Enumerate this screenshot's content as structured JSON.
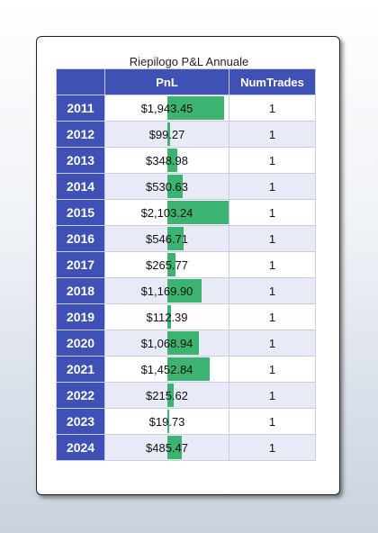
{
  "table": {
    "caption": "Riepilogo P&L Annuale",
    "headers": {
      "year": "",
      "pnl": "PnL",
      "trades": "NumTrades"
    },
    "rows": [
      {
        "year": "2011",
        "pnl": "$1,943.45",
        "pnl_value": 1943.45,
        "trades": "1"
      },
      {
        "year": "2012",
        "pnl": "$99.27",
        "pnl_value": 99.27,
        "trades": "1"
      },
      {
        "year": "2013",
        "pnl": "$348.98",
        "pnl_value": 348.98,
        "trades": "1"
      },
      {
        "year": "2014",
        "pnl": "$530.63",
        "pnl_value": 530.63,
        "trades": "1"
      },
      {
        "year": "2015",
        "pnl": "$2,103.24",
        "pnl_value": 2103.24,
        "trades": "1"
      },
      {
        "year": "2016",
        "pnl": "$546.71",
        "pnl_value": 546.71,
        "trades": "1"
      },
      {
        "year": "2017",
        "pnl": "$265.77",
        "pnl_value": 265.77,
        "trades": "1"
      },
      {
        "year": "2018",
        "pnl": "$1,169.90",
        "pnl_value": 1169.9,
        "trades": "1"
      },
      {
        "year": "2019",
        "pnl": "$112.39",
        "pnl_value": 112.39,
        "trades": "1"
      },
      {
        "year": "2020",
        "pnl": "$1,068.94",
        "pnl_value": 1068.94,
        "trades": "1"
      },
      {
        "year": "2021",
        "pnl": "$1,452.84",
        "pnl_value": 1452.84,
        "trades": "1"
      },
      {
        "year": "2022",
        "pnl": "$215.62",
        "pnl_value": 215.62,
        "trades": "1"
      },
      {
        "year": "2023",
        "pnl": "$19.73",
        "pnl_value": 19.73,
        "trades": "1"
      },
      {
        "year": "2024",
        "pnl": "$485.47",
        "pnl_value": 485.47,
        "trades": "1"
      }
    ]
  },
  "colors": {
    "header_bg": "#3f51b5",
    "bar": "#3cb371",
    "alt_row": "#e8ebf6"
  }
}
